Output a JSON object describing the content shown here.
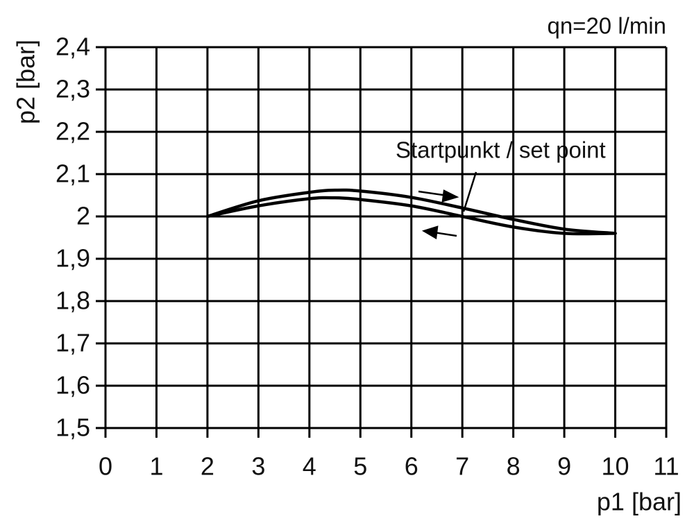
{
  "chart_data": {
    "type": "line",
    "annotations": [
      "qn=20 l/min",
      "Startpunkt / set point"
    ],
    "xlabel": "p1 [bar]",
    "ylabel": "p2 [bar]",
    "x": [
      2,
      3,
      4,
      4.5,
      5,
      6,
      7,
      8,
      9,
      10
    ],
    "series": [
      {
        "color": "#000000",
        "values": [
          2.0,
          2.037,
          2.057,
          2.062,
          2.06,
          2.045,
          2.02,
          1.993,
          1.97,
          1.96
        ]
      },
      {
        "color": "#000000",
        "values": [
          2.0,
          2.025,
          2.042,
          2.044,
          2.04,
          2.025,
          2.0,
          1.975,
          1.96,
          1.96
        ]
      }
    ],
    "xlim": [
      0,
      11
    ],
    "xticks": [
      0,
      1,
      2,
      3,
      4,
      5,
      6,
      7,
      8,
      9,
      10,
      11
    ],
    "ylim": [
      1.5,
      2.4
    ],
    "yticks": [
      {
        "value": 1.5,
        "label": "1,5"
      },
      {
        "value": 1.6,
        "label": "1,6"
      },
      {
        "value": 1.7,
        "label": "1,7"
      },
      {
        "value": 1.8,
        "label": "1,8"
      },
      {
        "value": 1.9,
        "label": "1,9"
      },
      2,
      {
        "value": 2.1,
        "label": "2,1"
      },
      {
        "value": 2.2,
        "label": "2,2"
      },
      {
        "value": 2.3,
        "label": "2,3"
      },
      {
        "value": 2.4,
        "label": "2,4"
      }
    ],
    "grid": true
  }
}
